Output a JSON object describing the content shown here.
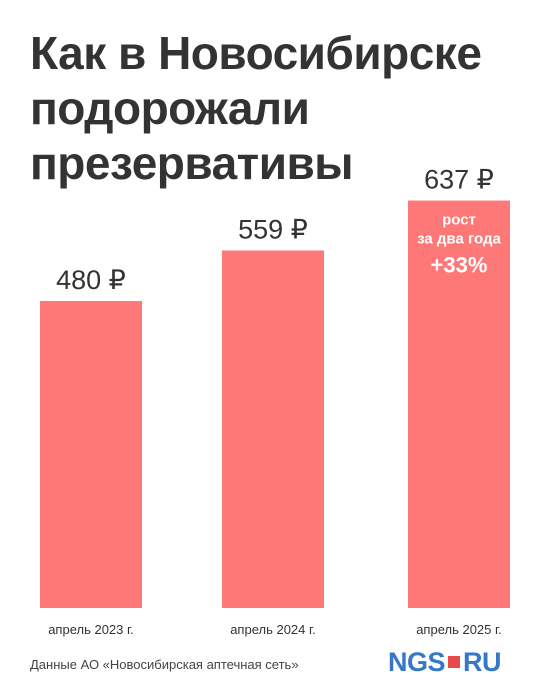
{
  "title_lines": [
    "Как в Новосибирске",
    "подорожали",
    "презервативы"
  ],
  "colors": {
    "bar": "#ff7878",
    "text": "#333333",
    "note": "#ffffff",
    "logo_blue": "#3577c8",
    "logo_red": "#e84a4a"
  },
  "chart_data": {
    "type": "bar",
    "title": "Как в Новосибирске подорожали презервативы",
    "categories": [
      "апрель 2023 г.",
      "апрель 2024 г.",
      "апрель 2025 г."
    ],
    "values": [
      480,
      559,
      637
    ],
    "value_labels": [
      "480 ₽",
      "559 ₽",
      "637 ₽"
    ],
    "unit": "₽",
    "annotation": {
      "bar_index": 2,
      "lines": [
        "рост",
        "за два года",
        "+33%"
      ]
    },
    "grid": false,
    "legend": false
  },
  "source": "Данные АО «Новосибирская аптечная сеть»",
  "logo": {
    "left": "NGS",
    "right": "RU"
  }
}
